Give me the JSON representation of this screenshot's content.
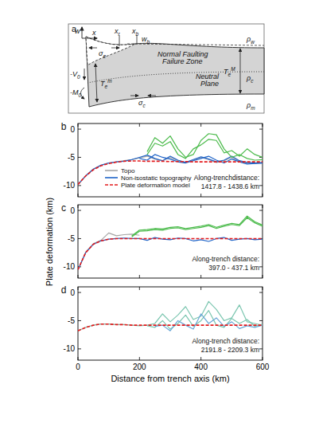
{
  "diagram": {
    "label": "a",
    "texts": [
      {
        "text": "w"
      },
      {
        "text": "x"
      },
      {
        "text": "x",
        "sub": "r"
      },
      {
        "text": "x",
        "sub": "b"
      },
      {
        "text": "w",
        "sub": "b"
      },
      {
        "text": "σ",
        "sub": "e"
      },
      {
        "text": "Normal Faulting"
      },
      {
        "text": "Failure Zone"
      },
      {
        "text": "Neutral"
      },
      {
        "text": "Plane"
      },
      {
        "text": "-V",
        "sub": "0"
      },
      {
        "text": "-M",
        "sub": "0"
      },
      {
        "text": "T",
        "sub": "e",
        "sup": "m"
      },
      {
        "text": "T",
        "sub": "e",
        "sup": "M"
      },
      {
        "text": "σ",
        "sub": "c"
      },
      {
        "text": "ρ",
        "sub": "w"
      },
      {
        "text": "ρ",
        "sub": "c"
      },
      {
        "text": "ρ",
        "sub": "m"
      }
    ]
  },
  "chart_data": [
    {
      "type": "line",
      "label": "b",
      "legend": "lower left",
      "tick_labels": "y",
      "annotation": [
        "Along-trenchdistance:",
        "1417.8 - 1438.6 km"
      ],
      "xlim": [
        0,
        600
      ],
      "xticks": [
        0,
        200,
        400,
        600
      ],
      "ylim": [
        -12,
        1
      ],
      "yticks": [
        0,
        -5,
        -10
      ],
      "x": [
        0,
        25,
        50,
        75,
        100,
        125,
        150,
        175,
        200,
        225,
        250,
        275,
        300,
        325,
        350,
        375,
        400,
        425,
        450,
        475,
        500,
        525,
        550,
        575,
        600
      ],
      "series": [
        {
          "name": "Topo",
          "color": "#a6a6a6",
          "values": [
            -9.9,
            -8.3,
            -7.1,
            -6.4,
            -6.0,
            -5.8,
            -5.6,
            -5.4,
            -5.1,
            -4.8,
            -5.3,
            -5.6,
            -5.0,
            -5.6,
            -5.9,
            -5.5,
            -5.0,
            -5.4,
            -5.9,
            -5.6,
            -5.0,
            -5.7,
            -6.0,
            -6.1,
            -6.0
          ]
        },
        {
          "name": "Non-isostatic topography",
          "color": "#1f64c8",
          "values": [
            -9.8,
            -8.3,
            -7.1,
            -6.4,
            -6.0,
            -5.8,
            -5.7,
            -5.4,
            -5.0,
            -4.6,
            -5.2,
            -5.6,
            -4.8,
            -5.5,
            -5.9,
            -5.4,
            -4.9,
            -5.3,
            -5.8,
            -5.5,
            -4.8,
            -5.6,
            -5.9,
            -6.0,
            -5.9
          ]
        },
        {
          "color": "#1f64c8",
          "values": [
            null,
            null,
            null,
            null,
            null,
            null,
            null,
            null,
            -5.2,
            -5.5,
            -4.5,
            -5.0,
            -5.3,
            -5.8,
            -6.0,
            -5.6,
            -5.2,
            -4.8,
            -5.5,
            -6.0,
            -5.3,
            -5.8,
            -6.2,
            -6.1,
            -6.0
          ]
        },
        {
          "color": "#4cbb4c",
          "values": [
            null,
            null,
            null,
            null,
            null,
            null,
            null,
            null,
            null,
            -4.0,
            -1.5,
            -2.5,
            -1.2,
            -3.5,
            -5.0,
            -4.5,
            -2.0,
            -0.8,
            -1.0,
            -3.5,
            -5.0,
            -4.5,
            -5.2,
            -5.5,
            -5.4
          ]
        },
        {
          "color": "#4cbb4c",
          "values": [
            null,
            null,
            null,
            null,
            null,
            null,
            null,
            null,
            null,
            -4.5,
            -2.5,
            -3.0,
            -2.2,
            -4.5,
            -5.2,
            -3.5,
            -2.8,
            -1.8,
            -2.0,
            -4.2,
            -3.8,
            -4.8,
            -3.5,
            -4.5,
            -5.0
          ]
        },
        {
          "name": "Plate deformation model",
          "color": "#e41a1c",
          "line_style": "dashed",
          "values": [
            -9.8,
            -8.3,
            -7.2,
            -6.5,
            -6.1,
            -5.85,
            -5.7,
            -5.65,
            -5.65,
            -5.7,
            -5.7,
            -5.7,
            -5.75,
            -5.75,
            -5.75,
            -5.8,
            -5.8,
            -5.8,
            -5.8,
            -5.8,
            -5.8,
            -5.8,
            -5.8,
            -5.8,
            -5.8
          ]
        }
      ]
    },
    {
      "type": "line",
      "label": "c",
      "tick_labels": "y",
      "y_label": "Plate deformation (km)",
      "annotation": [
        "Along-trench distance:",
        "397.0 - 437.1 km"
      ],
      "xlim": [
        0,
        600
      ],
      "xticks": [
        0,
        200,
        400,
        600
      ],
      "ylim": [
        -12,
        1
      ],
      "yticks": [
        0,
        -5,
        -10
      ],
      "x": [
        0,
        25,
        50,
        75,
        100,
        125,
        150,
        175,
        200,
        225,
        250,
        275,
        300,
        325,
        350,
        375,
        400,
        425,
        450,
        475,
        500,
        525,
        550,
        575,
        600
      ],
      "series": [
        {
          "color": "#a6a6a6",
          "values": [
            -10.6,
            -7.4,
            -5.9,
            -5.3,
            -4.0,
            -4.5,
            -4.3,
            -4.2,
            -4.4,
            null,
            null,
            null,
            null,
            null,
            null,
            null,
            null,
            null,
            null,
            null,
            null,
            null,
            null,
            null,
            null
          ]
        },
        {
          "color": "#1f64c8",
          "values": [
            -10.5,
            -7.5,
            -6.0,
            -5.4,
            -5.1,
            -5.0,
            -4.9,
            -5.0,
            -5.0,
            -5.3,
            -4.8,
            -5.1,
            -5.2,
            -4.9,
            -5.0,
            -5.4,
            -5.2,
            -5.5,
            -5.0,
            -4.8,
            -5.3,
            -5.1,
            -5.0,
            -5.2,
            -5.1
          ]
        },
        {
          "color": "#4cbb4c",
          "values": [
            null,
            null,
            null,
            null,
            null,
            null,
            null,
            -4.5,
            -3.5,
            -3.4,
            -3.2,
            -3.3,
            -3.0,
            -2.9,
            -3.2,
            -3.0,
            -2.8,
            -2.5,
            -3.0,
            -2.6,
            -2.3,
            -2.5,
            -1.0,
            -2.0,
            -2.6
          ]
        },
        {
          "color": "#4cbb4c",
          "values": [
            null,
            null,
            null,
            null,
            null,
            null,
            null,
            -4.7,
            -3.7,
            -3.6,
            -3.4,
            -3.5,
            -3.2,
            -3.1,
            -3.4,
            -3.2,
            -3.0,
            -2.7,
            -3.2,
            -2.8,
            -2.5,
            -2.7,
            -1.3,
            -2.2,
            -2.8
          ]
        },
        {
          "color": "#e41a1c",
          "line_style": "dashed",
          "values": [
            -10.5,
            -7.5,
            -6.0,
            -5.4,
            -5.1,
            -5.0,
            -5.0,
            -5.0,
            -5.0,
            -5.0,
            -5.0,
            -5.0,
            -5.0,
            -5.0,
            -5.0,
            -5.0,
            -5.0,
            -5.0,
            -5.0,
            -5.0,
            -5.0,
            -5.0,
            -5.0,
            -5.0,
            -5.0
          ]
        }
      ]
    },
    {
      "type": "line",
      "label": "d",
      "x_label": "Distance from trench axis (km)",
      "annotation": [
        "Along-trench distance:",
        "2191.8 - 2209.3 km"
      ],
      "xlim": [
        0,
        600
      ],
      "xticks": [
        0,
        200,
        400,
        600
      ],
      "ylim": [
        -12,
        1
      ],
      "yticks": [
        0,
        -5,
        -10
      ],
      "x": [
        0,
        25,
        50,
        75,
        100,
        125,
        150,
        175,
        200,
        225,
        250,
        275,
        300,
        325,
        350,
        375,
        400,
        425,
        450,
        475,
        500,
        525,
        550,
        575,
        600
      ],
      "series": [
        {
          "color": "#7cc6b0",
          "values": [
            -6.8,
            -6.2,
            -5.8,
            -5.6,
            -5.6,
            -5.7,
            -5.7,
            -5.8,
            -5.9,
            -5.8,
            -5.5,
            -3.8,
            -5.2,
            -4.0,
            -2.5,
            -4.8,
            -4.2,
            -1.6,
            -3.0,
            -5.0,
            -4.5,
            -2.2,
            -5.2,
            -5.5,
            -5.8
          ]
        },
        {
          "color": "#7cc6b0",
          "values": [
            null,
            null,
            null,
            null,
            null,
            null,
            null,
            null,
            null,
            -5.9,
            -6.2,
            -5.0,
            -6.5,
            -5.5,
            -4.0,
            -6.0,
            -5.0,
            -3.2,
            -5.8,
            -6.2,
            -4.6,
            -5.5,
            -4.8,
            -6.0,
            -5.6
          ]
        },
        {
          "color": "#6aa6d6",
          "values": [
            null,
            null,
            null,
            null,
            null,
            null,
            null,
            null,
            null,
            null,
            -6.0,
            -5.8,
            -6.8,
            -5.0,
            -5.8,
            -6.5,
            -3.8,
            -5.5,
            -4.5,
            -6.0,
            -5.2,
            -6.4,
            -5.9,
            -6.2,
            -5.8
          ]
        },
        {
          "color": "#e41a1c",
          "line_style": "dashed",
          "values": [
            -6.8,
            -6.2,
            -5.8,
            -5.6,
            -5.6,
            -5.7,
            -5.7,
            -5.8,
            -5.8,
            -5.8,
            -5.8,
            -5.8,
            -5.8,
            -5.8,
            -5.8,
            -5.8,
            -5.8,
            -5.8,
            -5.8,
            -5.8,
            -5.8,
            -5.8,
            -5.8,
            -5.8,
            -5.8
          ]
        }
      ]
    }
  ]
}
